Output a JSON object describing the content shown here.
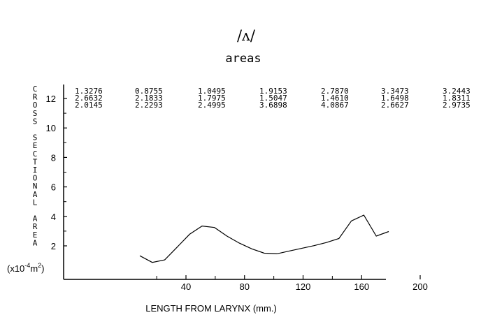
{
  "chart_data": {
    "type": "line",
    "title": "/ʌ/",
    "subtitle": "areas",
    "xlabel": "LENGTH FROM LARYNX  (mm.)",
    "ylabel": "CROSS SECTIONAL AREA",
    "ylabel_unit": {
      "prefix": "(x10",
      "exponent": "-4",
      "base": "m",
      "exp2": "2",
      "suffix": ")"
    },
    "xlim": [
      0,
      220
    ],
    "ylim": [
      0.4,
      13.5
    ],
    "xticks": [
      40,
      80,
      120,
      160,
      200
    ],
    "yticks": [
      2,
      4,
      6,
      8,
      10,
      12
    ],
    "grid": false,
    "table_rows": [
      [
        "1.3276",
        "0.8755",
        "1.0495",
        "1.9153",
        "2.7870",
        "3.3473",
        "3.2443"
      ],
      [
        "2.6632",
        "2.1833",
        "1.7975",
        "1.5047",
        "1.4610",
        "1.6498",
        "1.8311"
      ],
      [
        "2.0145",
        "2.2293",
        "2.4995",
        "3.6898",
        "4.0867",
        "2.6627",
        "2.9735"
      ]
    ],
    "series": [
      {
        "x": [
          8.5,
          17,
          25.5,
          34,
          42.5,
          51,
          59.5,
          68,
          76.5,
          85,
          93.5,
          102,
          110.5,
          119,
          127.5,
          136,
          144.5,
          153,
          161.5,
          170,
          178.5
        ],
        "values": [
          1.3276,
          0.8755,
          1.0495,
          1.9153,
          2.787,
          3.3473,
          3.2443,
          2.6632,
          2.1833,
          1.7975,
          1.5047,
          1.461,
          1.6498,
          1.8311,
          2.0145,
          2.2293,
          2.4995,
          3.6898,
          4.0867,
          2.6627,
          2.9735
        ]
      }
    ]
  }
}
